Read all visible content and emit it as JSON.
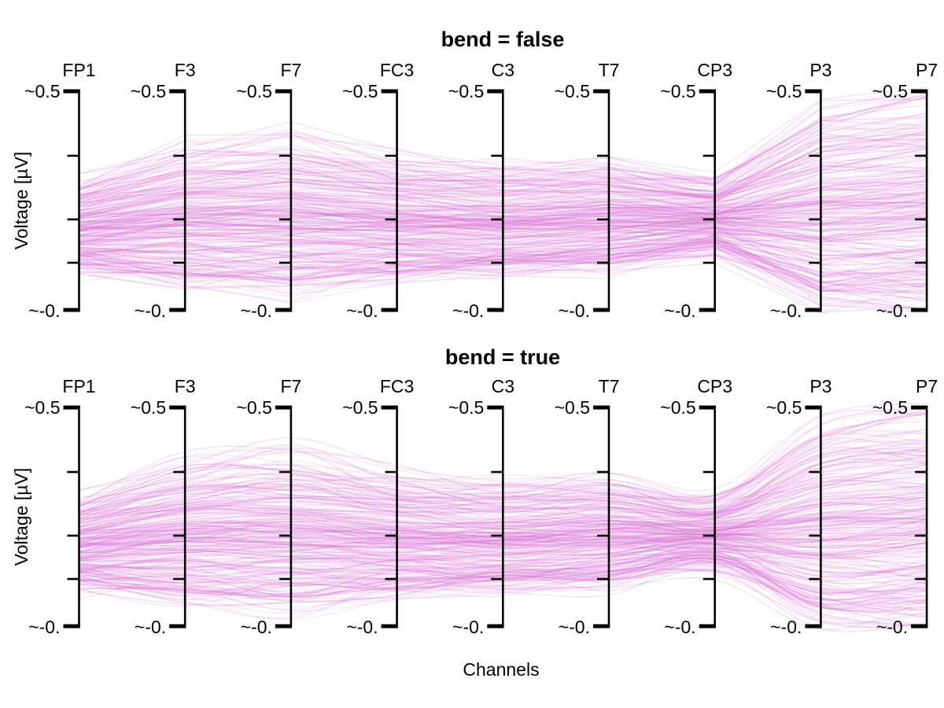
{
  "figure": {
    "background_color": "#ffffff",
    "text_color": "#000000",
    "line_color": "#DA70D6",
    "line_opacity_range": [
      0.13,
      0.27
    ],
    "approx_line_count_per_plot": 240,
    "xlabel": "Channels"
  },
  "chart_data": [
    {
      "type": "line",
      "variant": "parallel-coordinates",
      "title": "bend = false",
      "bend": false,
      "ylabel": "Voltage [µV]",
      "xlabel": "Channels",
      "categories": [
        "FP1",
        "F3",
        "F7",
        "FC3",
        "C3",
        "T7",
        "CP3",
        "P3",
        "P7"
      ],
      "ylim": [
        -0.5,
        0.5
      ],
      "tick_label_top": "~0.5",
      "tick_label_bottom": "~-0.",
      "axis_tick_fractions_from_top": [
        0,
        0.295,
        0.586,
        0.784,
        1
      ],
      "line_style": "straight segments between axes",
      "grid": false,
      "legend": false,
      "series": {
        "description": "~240 overlapping EEG traces; per-channel value band in data units (voltage)",
        "band_center": [
          -0.115,
          -0.06,
          -0.055,
          -0.08,
          -0.085,
          -0.07,
          -0.07,
          -0.03,
          0.0
        ],
        "band_halfwidth": [
          0.215,
          0.32,
          0.355,
          0.29,
          0.255,
          0.26,
          0.17,
          0.47,
          0.5
        ]
      }
    },
    {
      "type": "line",
      "variant": "parallel-coordinates",
      "title": "bend = true",
      "bend": true,
      "ylabel": "Voltage [µV]",
      "xlabel": "Channels",
      "categories": [
        "FP1",
        "F3",
        "F7",
        "FC3",
        "C3",
        "T7",
        "CP3",
        "P3",
        "P7"
      ],
      "ylim": [
        -0.5,
        0.5
      ],
      "tick_label_top": "~0.5",
      "tick_label_bottom": "~-0.",
      "axis_tick_fractions_from_top": [
        0,
        0.295,
        0.586,
        0.784,
        1
      ],
      "line_style": "smooth spline curves between axes",
      "grid": false,
      "legend": false,
      "series": {
        "description": "same ~240 traces as top subplot, drawn with curved (bent) links",
        "band_center": [
          -0.115,
          -0.06,
          -0.055,
          -0.08,
          -0.085,
          -0.07,
          -0.07,
          -0.03,
          0.0
        ],
        "band_halfwidth": [
          0.215,
          0.32,
          0.355,
          0.29,
          0.255,
          0.26,
          0.17,
          0.47,
          0.5
        ]
      }
    }
  ]
}
